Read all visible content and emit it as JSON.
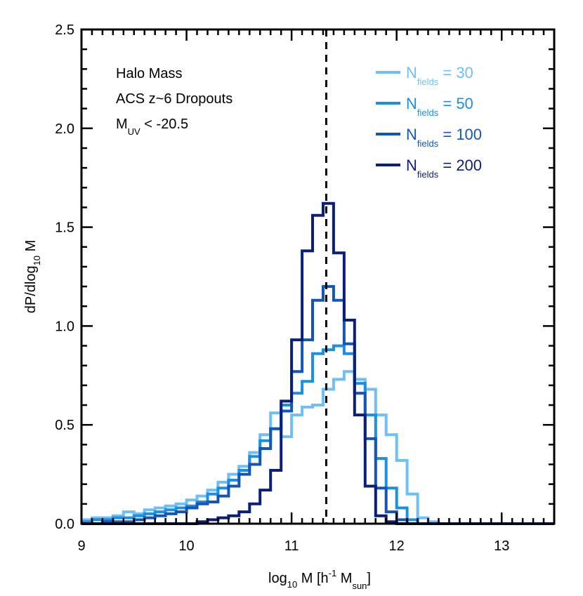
{
  "chart_data": {
    "type": "step-histogram",
    "xlabel": {
      "main": "log",
      "sub1": "10",
      "mid": " M [h",
      "sup": "-1",
      "mid2": " M",
      "sub2": "sun",
      "end": "]"
    },
    "ylabel": {
      "main": "dP/dlog",
      "sub": "10",
      "end": " M"
    },
    "xlim": [
      9,
      13.5
    ],
    "ylim": [
      0,
      2.5
    ],
    "xticks": [
      9,
      10,
      11,
      12,
      13
    ],
    "xtick_labels": [
      "9",
      "10",
      "11",
      "12",
      "13"
    ],
    "yticks": [
      0,
      0.5,
      1.0,
      1.5,
      2.0,
      2.5
    ],
    "ytick_labels": [
      "0.0",
      "0.5",
      "1.0",
      "1.5",
      "2.0",
      "2.5"
    ],
    "vline_x": 11.33,
    "annotations": {
      "line1": "Halo Mass",
      "line2": "ACS z~6 Dropouts",
      "line3_main": "M",
      "line3_sub": "UV",
      "line3_end": " < -20.5"
    },
    "bin_edges": [
      9.0,
      9.1,
      9.2,
      9.3,
      9.4,
      9.5,
      9.6,
      9.7,
      9.8,
      9.9,
      10.0,
      10.1,
      10.2,
      10.3,
      10.4,
      10.5,
      10.6,
      10.7,
      10.8,
      10.9,
      11.0,
      11.1,
      11.2,
      11.3,
      11.4,
      11.5,
      11.6,
      11.7,
      11.8,
      11.9,
      12.0,
      12.1,
      12.2,
      12.3,
      12.4,
      12.5,
      12.6,
      12.7,
      12.8,
      12.9,
      13.0,
      13.1,
      13.2,
      13.3,
      13.4,
      13.5
    ],
    "series": [
      {
        "name": "30",
        "label_main": "N",
        "label_sub": "fields",
        "label_end": " = 30",
        "color": "#6ebff5",
        "values": [
          0.02,
          0.03,
          0.03,
          0.04,
          0.06,
          0.05,
          0.07,
          0.08,
          0.09,
          0.1,
          0.12,
          0.14,
          0.17,
          0.21,
          0.25,
          0.29,
          0.36,
          0.45,
          0.56,
          0.44,
          0.55,
          0.59,
          0.6,
          0.68,
          0.73,
          0.77,
          0.73,
          0.68,
          0.55,
          0.45,
          0.32,
          0.15,
          0.03,
          0.01,
          0.0,
          0.0,
          0.0,
          0.0,
          0.0,
          0.0,
          0.0,
          0.0,
          0.0,
          0.0,
          0.0
        ]
      },
      {
        "name": "50",
        "label_main": "N",
        "label_sub": "fields",
        "label_end": " = 50",
        "color": "#1a8fe3",
        "values": [
          0.01,
          0.02,
          0.02,
          0.03,
          0.03,
          0.04,
          0.05,
          0.06,
          0.07,
          0.08,
          0.09,
          0.11,
          0.15,
          0.18,
          0.22,
          0.27,
          0.34,
          0.42,
          0.48,
          0.6,
          0.66,
          0.72,
          0.86,
          0.88,
          0.9,
          0.86,
          0.71,
          0.55,
          0.33,
          0.18,
          0.08,
          0.02,
          0.0,
          0.0,
          0.0,
          0.0,
          0.0,
          0.0,
          0.0,
          0.0,
          0.0,
          0.0,
          0.0,
          0.0,
          0.0
        ]
      },
      {
        "name": "100",
        "label_main": "N",
        "label_sub": "fields",
        "label_end": " = 100",
        "color": "#1456b8",
        "values": [
          0.0,
          0.0,
          0.01,
          0.01,
          0.01,
          0.02,
          0.03,
          0.04,
          0.05,
          0.06,
          0.08,
          0.1,
          0.11,
          0.14,
          0.19,
          0.25,
          0.3,
          0.38,
          0.48,
          0.57,
          0.77,
          0.93,
          1.13,
          1.2,
          1.13,
          0.91,
          0.66,
          0.43,
          0.18,
          0.06,
          0.02,
          0.0,
          0.0,
          0.0,
          0.0,
          0.0,
          0.0,
          0.0,
          0.0,
          0.0,
          0.0,
          0.0,
          0.0,
          0.0,
          0.0
        ]
      },
      {
        "name": "200",
        "label_main": "N",
        "label_sub": "fields",
        "label_end": " = 200",
        "color": "#0a1f7a",
        "values": [
          0.0,
          0.0,
          0.0,
          0.0,
          0.0,
          0.0,
          0.0,
          0.0,
          0.0,
          0.0,
          0.0,
          0.01,
          0.02,
          0.03,
          0.04,
          0.06,
          0.1,
          0.17,
          0.27,
          0.62,
          0.93,
          1.38,
          1.56,
          1.62,
          1.37,
          1.03,
          0.55,
          0.19,
          0.04,
          0.01,
          0.0,
          0.0,
          0.0,
          0.0,
          0.0,
          0.0,
          0.0,
          0.0,
          0.0,
          0.0,
          0.0,
          0.0,
          0.0,
          0.0,
          0.0
        ]
      }
    ]
  }
}
